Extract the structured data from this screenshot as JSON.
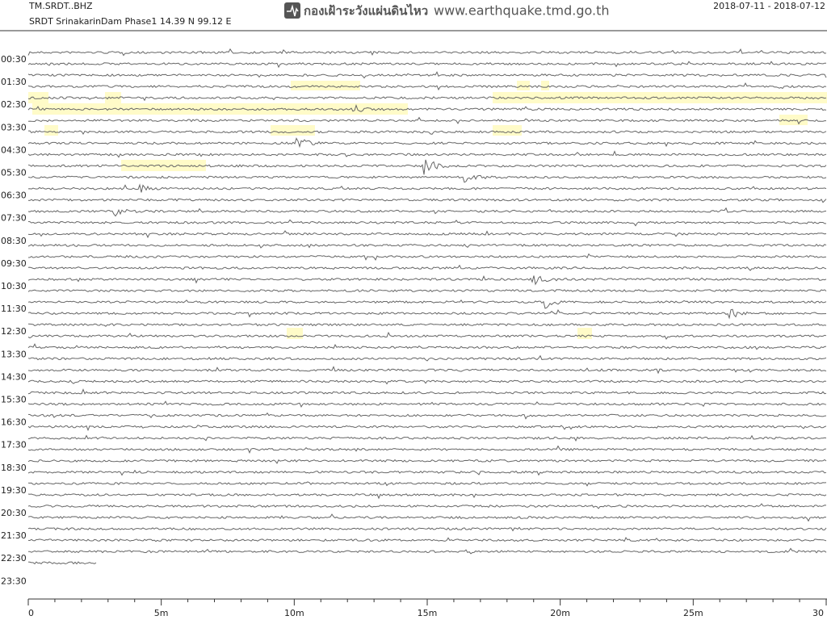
{
  "header": {
    "station": "TM.SRDT..BHZ",
    "location": "SRDT SrinakarinDam Phase1  14.39 N 99.12 E",
    "agency": "กองเฝ้าระวังแผ่นดินไหว",
    "url": "www.earthquake.tmd.go.th",
    "date_range": "2018-07-11 - 2018-07-12"
  },
  "rows": [
    "00:30",
    "01:30",
    "02:30",
    "03:30",
    "04:30",
    "05:30",
    "06:30",
    "07:30",
    "08:30",
    "09:30",
    "10:30",
    "11:30",
    "12:30",
    "13:30",
    "14:30",
    "15:30",
    "16:30",
    "17:30",
    "18:30",
    "19:30",
    "20:30",
    "21:30",
    "22:30",
    "23:30"
  ],
  "x_axis": {
    "ticks": [
      "0",
      "5m",
      "10m",
      "15m",
      "20m",
      "25m",
      "30"
    ]
  }
}
